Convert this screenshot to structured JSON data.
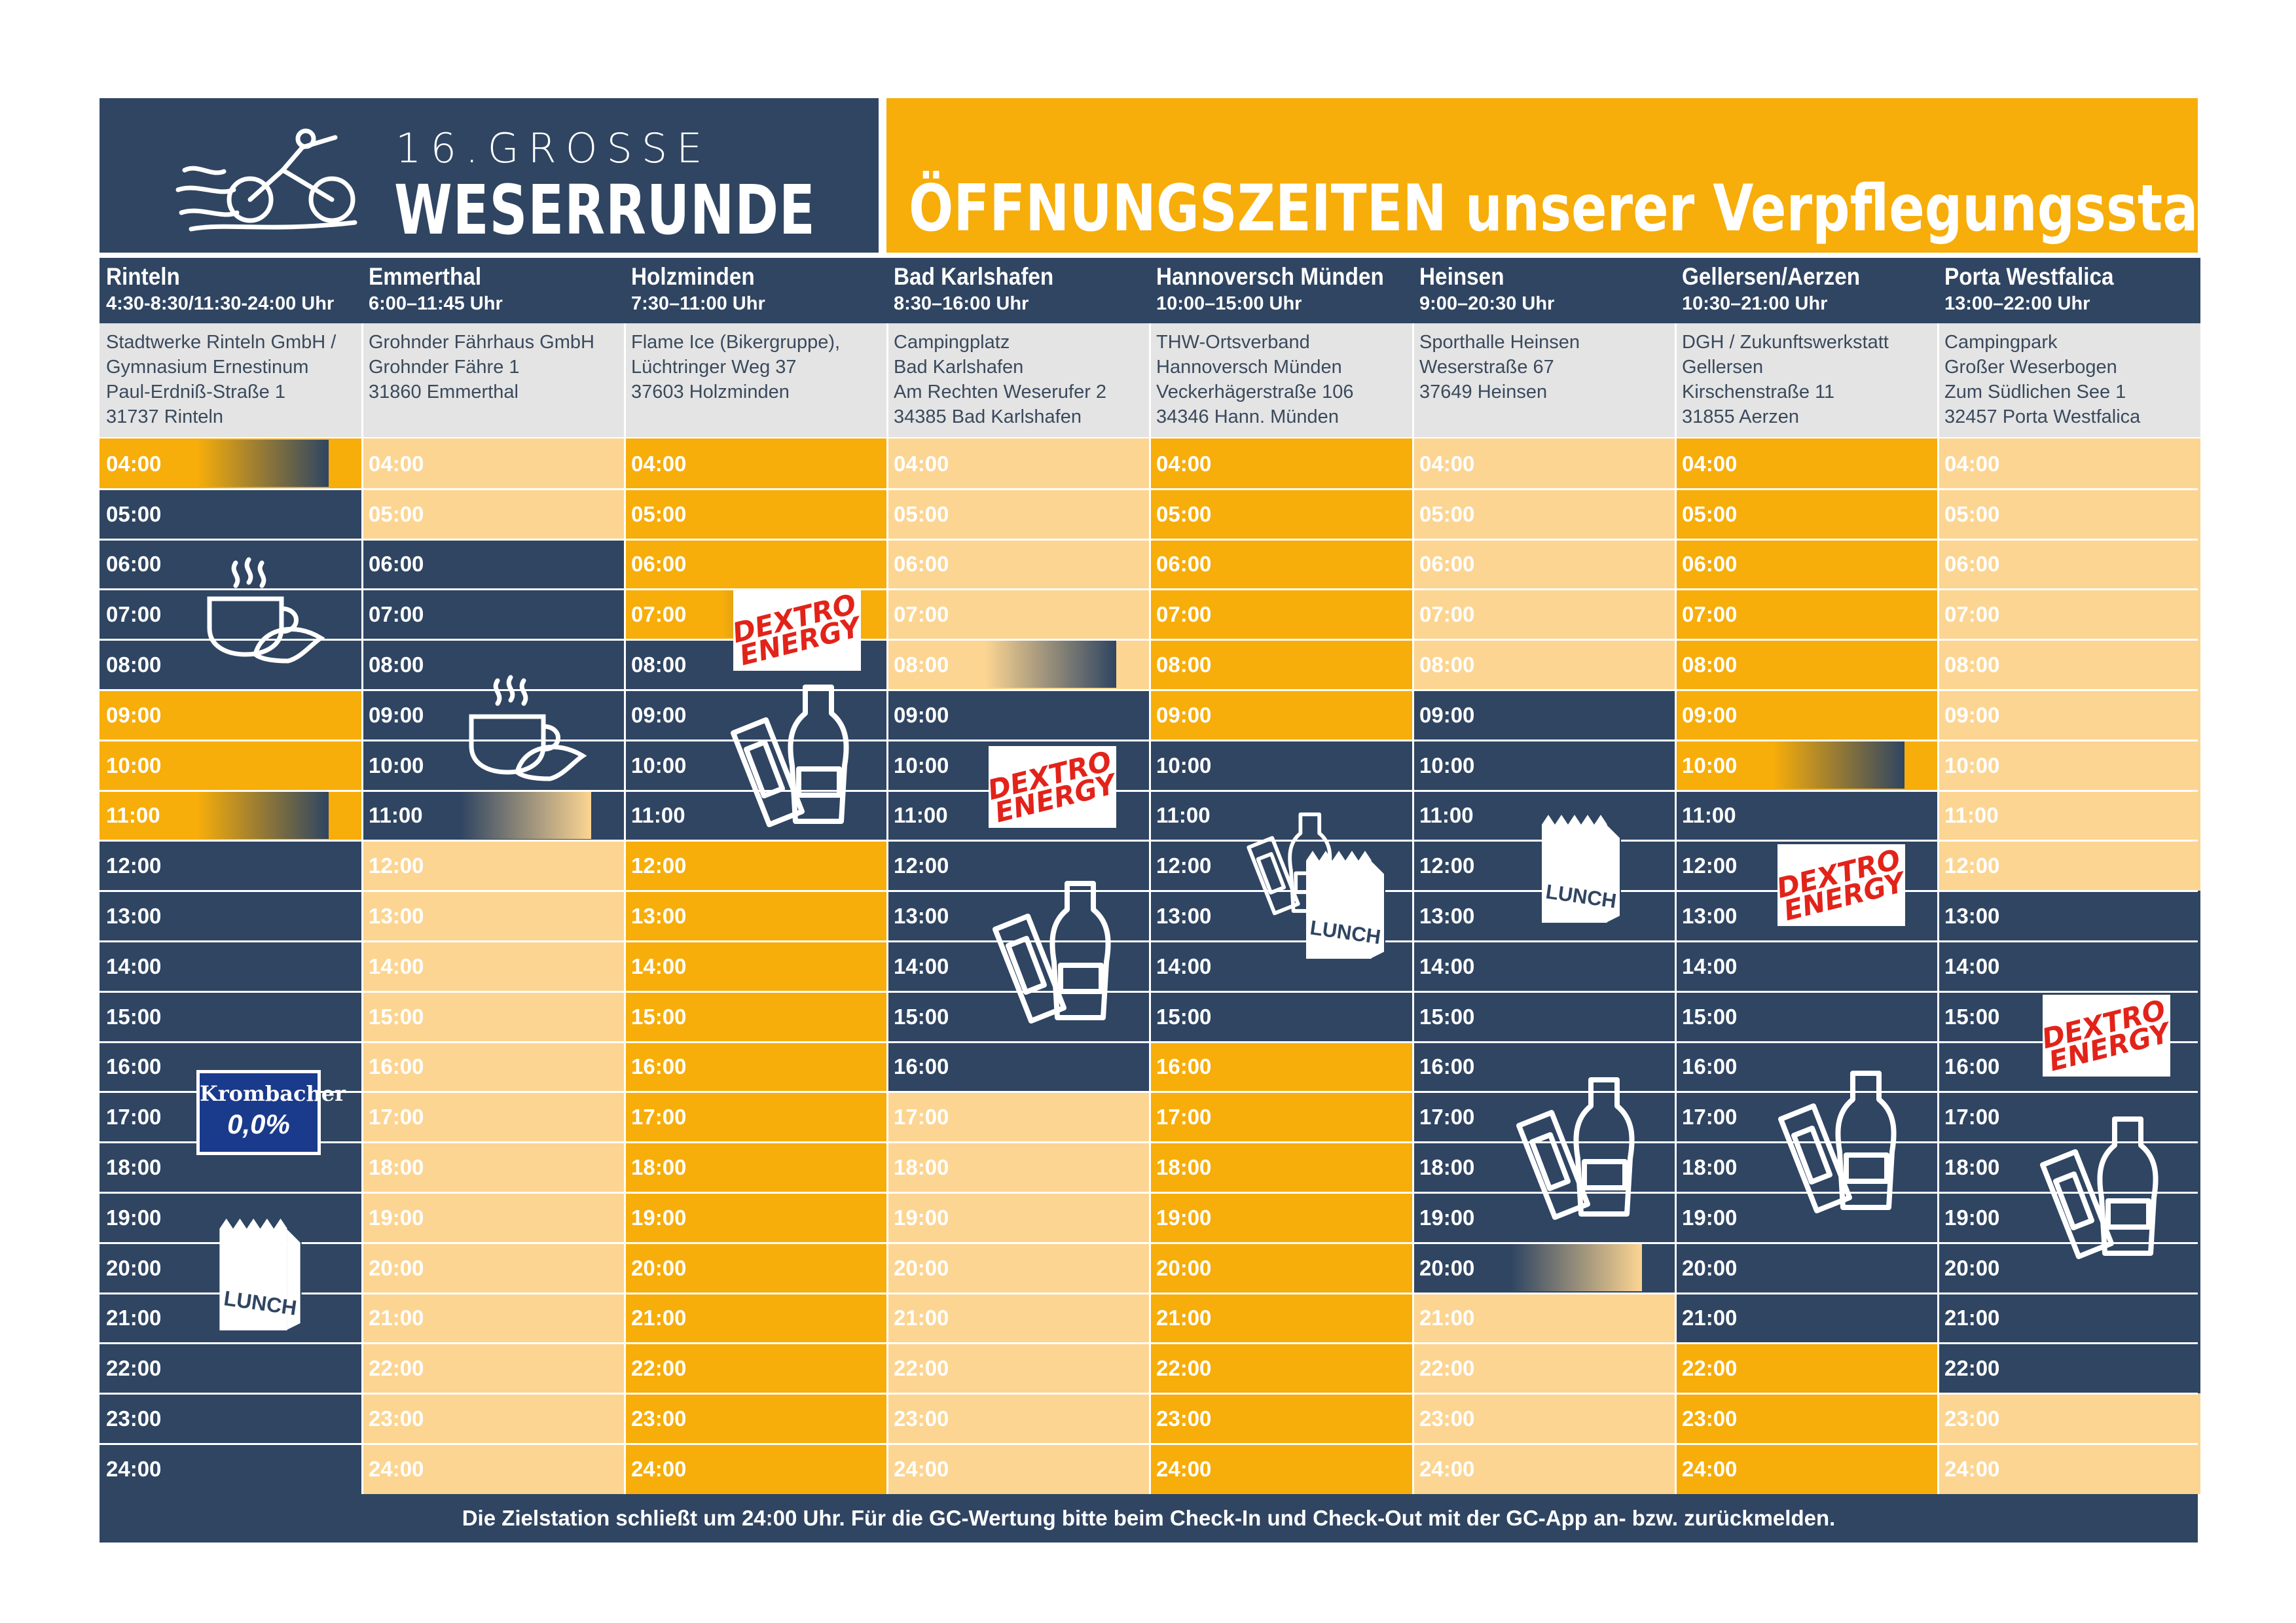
{
  "logo": {
    "line1": "16.GROSSE",
    "line2": "WESERRUNDE"
  },
  "title": "ÖFFNUNGSZEITEN unserer Verpflegungsstationen",
  "colors": {
    "navy": "#2f4562",
    "orange": "#f7ad0a",
    "light": "#fcd592",
    "grey": "#e4e4e5"
  },
  "stations": [
    {
      "name": "Rinteln",
      "hours": "4:30-8:30/11:30-24:00 Uhr",
      "address": [
        "Stadtwerke Rinteln GmbH /",
        "Gymnasium Ernestinum",
        "Paul-Erdniß-Straße 1",
        "31737 Rinteln"
      ]
    },
    {
      "name": "Emmerthal",
      "hours": "6:00–11:45 Uhr",
      "address": [
        "Grohnder Fährhaus GmbH",
        "Grohnder Fähre 1",
        "31860 Emmerthal"
      ]
    },
    {
      "name": "Holzminden",
      "hours": "7:30–11:00 Uhr",
      "address": [
        "Flame Ice (Bikergruppe),",
        "Lüchtringer Weg 37",
        "37603 Holzminden"
      ]
    },
    {
      "name": "Bad Karlshafen",
      "hours": "8:30–16:00 Uhr",
      "address": [
        "Campingplatz",
        "Bad Karlshafen",
        "Am Rechten Weserufer 2",
        "34385 Bad Karlshafen"
      ]
    },
    {
      "name": "Hannoversch Münden",
      "hours": "10:00–15:00 Uhr",
      "address": [
        "THW-Ortsverband",
        "Hannoversch Münden",
        "Veckerhägerstraße 106",
        "34346 Hann. Münden"
      ]
    },
    {
      "name": "Heinsen",
      "hours": "9:00–20:30 Uhr",
      "address": [
        "Sporthalle Heinsen",
        "Weserstraße 67",
        "37649 Heinsen"
      ]
    },
    {
      "name": "Gellersen/Aerzen",
      "hours": "10:30–21:00 Uhr",
      "address": [
        "DGH / Zukunftswerkstatt",
        "Gellersen",
        "Kirschenstraße 11",
        "31855 Aerzen"
      ]
    },
    {
      "name": "Porta Westfalica",
      "hours": "13:00–22:00 Uhr",
      "address": [
        "Campingpark",
        "Großer Weserbogen",
        "Zum Südlichen See 1",
        "32457 Porta Westfalica"
      ]
    }
  ],
  "times": [
    "04:00",
    "05:00",
    "06:00",
    "07:00",
    "08:00",
    "09:00",
    "10:00",
    "11:00",
    "12:00",
    "13:00",
    "14:00",
    "15:00",
    "16:00",
    "17:00",
    "18:00",
    "19:00",
    "20:00",
    "21:00",
    "22:00",
    "23:00",
    "24:00"
  ],
  "schedule": [
    [
      "O",
      "N",
      "N",
      "N",
      "N",
      "O",
      "O",
      "O",
      "N",
      "N",
      "N",
      "N",
      "N",
      "N",
      "N",
      "N",
      "N",
      "N",
      "N",
      "N",
      "N"
    ],
    [
      "L",
      "L",
      "N",
      "N",
      "N",
      "N",
      "N",
      "N",
      "L",
      "L",
      "L",
      "L",
      "L",
      "L",
      "L",
      "L",
      "L",
      "L",
      "L",
      "L",
      "L"
    ],
    [
      "O",
      "O",
      "O",
      "O",
      "N",
      "N",
      "N",
      "N",
      "O",
      "O",
      "O",
      "O",
      "O",
      "O",
      "O",
      "O",
      "O",
      "O",
      "O",
      "O",
      "O"
    ],
    [
      "L",
      "L",
      "L",
      "L",
      "L",
      "N",
      "N",
      "N",
      "N",
      "N",
      "N",
      "N",
      "N",
      "L",
      "L",
      "L",
      "L",
      "L",
      "L",
      "L",
      "L"
    ],
    [
      "O",
      "O",
      "O",
      "O",
      "O",
      "O",
      "N",
      "N",
      "N",
      "N",
      "N",
      "N",
      "O",
      "O",
      "O",
      "O",
      "O",
      "O",
      "O",
      "O",
      "O"
    ],
    [
      "L",
      "L",
      "L",
      "L",
      "L",
      "N",
      "N",
      "N",
      "N",
      "N",
      "N",
      "N",
      "N",
      "N",
      "N",
      "N",
      "N",
      "L",
      "L",
      "L",
      "L"
    ],
    [
      "O",
      "O",
      "O",
      "O",
      "O",
      "O",
      "O",
      "N",
      "N",
      "N",
      "N",
      "N",
      "N",
      "N",
      "N",
      "N",
      "N",
      "N",
      "O",
      "O",
      "O"
    ],
    [
      "L",
      "L",
      "L",
      "L",
      "L",
      "L",
      "L",
      "L",
      "L",
      "N",
      "N",
      "N",
      "N",
      "N",
      "N",
      "N",
      "N",
      "N",
      "N",
      "L",
      "L"
    ]
  ],
  "badges": {
    "dextro": "DEXTRO ENERGY",
    "krombacher_top": "Krombacher",
    "krombacher_bottom": "0,0%",
    "lunch": "LUNCH"
  },
  "footer": "Die Zielstation schließt um 24:00 Uhr. Für die GC-Wertung bitte beim Check-In und Check-Out mit der GC-App an- bzw. zurückmelden."
}
